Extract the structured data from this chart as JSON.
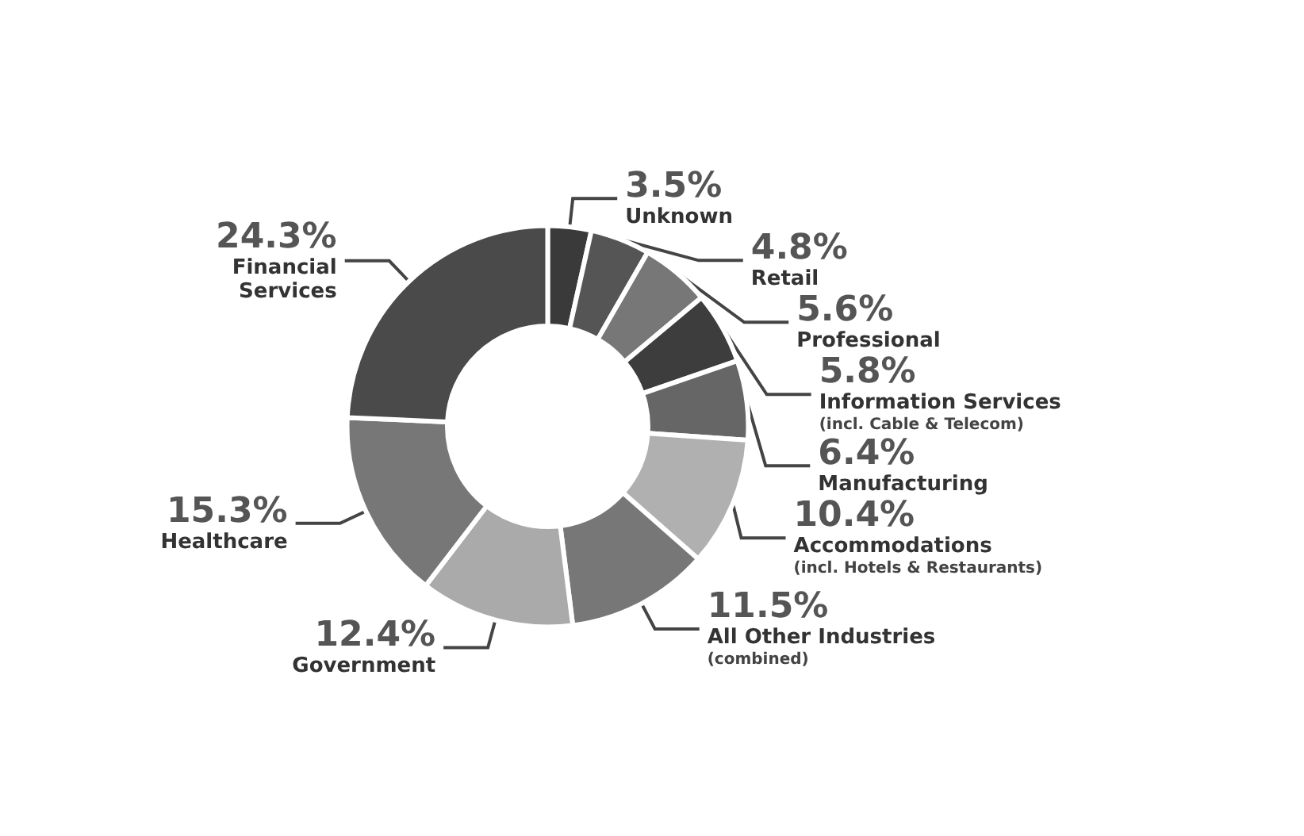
{
  "chart_data": {
    "type": "donut",
    "categories": [
      "Unknown",
      "Retail",
      "Professional",
      "Information Services\n(incl. Cable & Telecom)",
      "Manufacturing",
      "Accommodations\n(incl. Hotels & Restaurants)",
      "All Other Industries\n(combined)",
      "Government",
      "Healthcare",
      "Financial\nServices"
    ],
    "values": [
      3.5,
      4.8,
      5.6,
      5.8,
      6.4,
      10.4,
      11.5,
      12.4,
      15.3,
      24.3
    ],
    "value_labels": [
      "3.5%",
      "4.8%",
      "5.6%",
      "5.8%",
      "6.4%",
      "10.4%",
      "11.5%",
      "12.4%",
      "15.3%",
      "24.3%"
    ],
    "colors": [
      "#3a3a3a",
      "#555555",
      "#777777",
      "#3d3d3d",
      "#666666",
      "#b0b0b0",
      "#777777",
      "#aaaaaa",
      "#777777",
      "#4a4a4a"
    ],
    "legend": false
  }
}
